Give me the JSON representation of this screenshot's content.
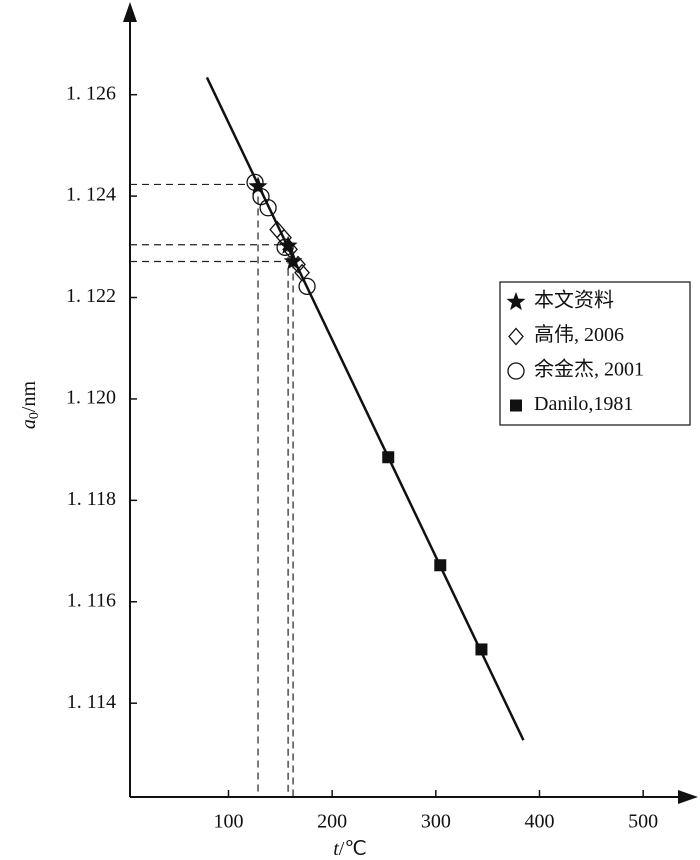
{
  "chart_data": {
    "type": "scatter",
    "xlabel": {
      "symbol": "t",
      "unit": "/℃"
    },
    "ylabel": {
      "symbol": "a",
      "subscript": "0",
      "unit": "/nm"
    },
    "xlim": [
      5,
      550
    ],
    "ylim": [
      1.11215,
      1.12767
    ],
    "xticks": [
      100,
      200,
      300,
      400,
      500
    ],
    "yticks": [
      {
        "value": 1.114,
        "label": "1. 114"
      },
      {
        "value": 1.116,
        "label": "1. 116"
      },
      {
        "value": 1.118,
        "label": "1. 118"
      },
      {
        "value": 1.12,
        "label": "1. 120"
      },
      {
        "value": 1.122,
        "label": "1. 122"
      },
      {
        "value": 1.124,
        "label": "1. 124"
      },
      {
        "value": 1.126,
        "label": "1. 126"
      }
    ],
    "fit_line": {
      "x": [
        79.2,
        384.5
      ],
      "y": [
        1.12634,
        1.11327
      ],
      "color": "#111111"
    },
    "guides": {
      "x": [
        128.5,
        157.5,
        162.3
      ],
      "y": [
        1.12423,
        1.12304,
        1.12271
      ]
    },
    "series": [
      {
        "name": "本文资料",
        "marker": "star",
        "color": "#111111",
        "x": [
          128.5,
          157.5,
          162.3
        ],
        "values": [
          1.12419,
          1.12302,
          1.12271
        ]
      },
      {
        "name": "高伟, 2006",
        "marker": "diamond",
        "color": "#111111",
        "x": [
          146.9,
          153.6,
          159.4,
          167.1,
          171.0
        ],
        "values": [
          1.12334,
          1.12318,
          1.12295,
          1.12265,
          1.12249
        ]
      },
      {
        "name": "余金杰, 2001",
        "marker": "circle",
        "color": "#111111",
        "x": [
          125.6,
          131.4,
          138.2,
          154.6,
          175.8
        ],
        "values": [
          1.12427,
          1.12399,
          1.12377,
          1.12299,
          1.12222
        ]
      },
      {
        "name": "Danilo,1981",
        "marker": "square",
        "color": "#111111",
        "x": [
          254.1,
          304.3,
          344.0
        ],
        "values": [
          1.11885,
          1.11672,
          1.11506
        ]
      }
    ],
    "legend": "right"
  }
}
